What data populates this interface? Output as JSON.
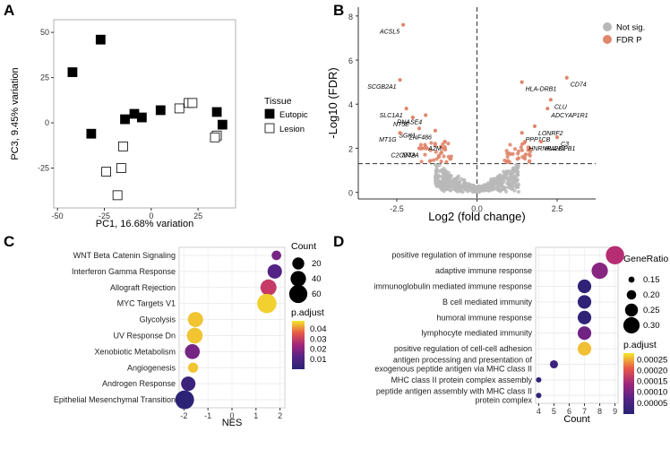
{
  "panels": {
    "a": {
      "label": "A"
    },
    "b": {
      "label": "B"
    },
    "c": {
      "label": "C"
    },
    "d": {
      "label": "D"
    }
  },
  "chart_data": [
    {
      "id": "A",
      "type": "scatter",
      "xlabel": "PC1, 16.68% variation",
      "ylabel": "PC3, 9.45% variation",
      "xlim": [
        -52,
        45
      ],
      "ylim": [
        -47,
        57
      ],
      "xticks": [
        -50,
        -25,
        0,
        25
      ],
      "yticks": [
        -25,
        0,
        25,
        50
      ],
      "legend_title": "Tissue",
      "series": [
        {
          "name": "Eutopic",
          "points": [
            [
              -42,
              28
            ],
            [
              -27,
              46
            ],
            [
              -32,
              -6
            ],
            [
              -14,
              2
            ],
            [
              -9,
              5
            ],
            [
              -5,
              3
            ],
            [
              5,
              7
            ],
            [
              35,
              6
            ],
            [
              38,
              -1
            ]
          ]
        },
        {
          "name": "Lesion",
          "points": [
            [
              -24,
              -27
            ],
            [
              -18,
              -40
            ],
            [
              -16,
              -25
            ],
            [
              -15,
              -13
            ],
            [
              15,
              8
            ],
            [
              20,
              11
            ],
            [
              22,
              11
            ],
            [
              35,
              -7
            ],
            [
              34,
              -8
            ]
          ]
        }
      ]
    },
    {
      "id": "B",
      "type": "scatter",
      "xlabel": "Log2 (fold change)",
      "ylabel": "-Log10 (FDR)",
      "xlim": [
        -3.7,
        3.7
      ],
      "ylim": [
        -0.3,
        8.4
      ],
      "xticks": [
        -2.5,
        0.0,
        2.5
      ],
      "xtick_labels": [
        "-2.5",
        "0.0",
        "2.5"
      ],
      "yticks": [
        0,
        2,
        4,
        6,
        8
      ],
      "threshold_y": 1.3,
      "legend": [
        "Not sig.",
        "FDR P"
      ],
      "labeled_genes": [
        {
          "gene": "ACSL5",
          "x": -2.3,
          "y": 7.6
        },
        {
          "gene": "SCGB2A1",
          "x": -2.4,
          "y": 5.1
        },
        {
          "gene": "SLC1A1",
          "x": -2.2,
          "y": 3.8
        },
        {
          "gene": "NT5E",
          "x": -2.0,
          "y": 3.4
        },
        {
          "gene": "RNASE4",
          "x": -1.6,
          "y": 3.5
        },
        {
          "gene": "SGK1",
          "x": -1.8,
          "y": 2.9
        },
        {
          "gene": "ZNF486",
          "x": -1.3,
          "y": 2.8
        },
        {
          "gene": "MT1G",
          "x": -2.4,
          "y": 2.7
        },
        {
          "gene": "A2M",
          "x": -1.0,
          "y": 2.3
        },
        {
          "gene": "MT2A",
          "x": -1.7,
          "y": 2.0
        },
        {
          "gene": "C2CD4A",
          "x": -1.8,
          "y": 2.0
        },
        {
          "gene": "CD74",
          "x": 2.8,
          "y": 5.2
        },
        {
          "gene": "HLA-DRB1",
          "x": 1.4,
          "y": 5.0
        },
        {
          "gene": "CLU",
          "x": 2.3,
          "y": 4.2
        },
        {
          "gene": "ADCYAP1R1",
          "x": 2.2,
          "y": 3.8
        },
        {
          "gene": "LONRF2",
          "x": 1.8,
          "y": 3.0
        },
        {
          "gene": "PPP1CB",
          "x": 1.4,
          "y": 2.7
        },
        {
          "gene": "C3",
          "x": 2.5,
          "y": 2.5
        },
        {
          "gene": "HNRNPA2B1",
          "x": 1.5,
          "y": 2.3
        },
        {
          "gene": "HLA-DPB1",
          "x": 2.0,
          "y": 2.3
        }
      ]
    },
    {
      "id": "C",
      "type": "scatter",
      "xlabel": "NES",
      "xlim": [
        -2.2,
        2.2
      ],
      "xticks": [
        -2,
        -1,
        0,
        1,
        2
      ],
      "categories": [
        "WNT Beta Catenin Signaling",
        "Interferon Gamma Response",
        "Allograft Rejection",
        "MYC Targets V1",
        "Glycolysis",
        "UV Response Dn",
        "Xenobiotic Metabolism",
        "Angiogenesis",
        "Androgen Response",
        "Epithelial Mesenchymal Transition"
      ],
      "nes": [
        1.85,
        1.78,
        1.52,
        1.45,
        -1.52,
        -1.55,
        -1.65,
        -1.62,
        -1.82,
        -1.97
      ],
      "count": [
        10,
        33,
        44,
        70,
        38,
        42,
        36,
        12,
        33,
        65
      ],
      "padj": [
        0.018,
        0.012,
        0.03,
        0.046,
        0.045,
        0.045,
        0.018,
        0.045,
        0.005,
        0.001
      ],
      "size_legend_title": "Count",
      "size_legend": [
        20,
        40,
        60
      ],
      "color_legend_title": "p.adjust",
      "color_legend": [
        0.04,
        0.03,
        0.02,
        0.01
      ],
      "color_range": [
        0.0,
        0.048
      ]
    },
    {
      "id": "D",
      "type": "scatter",
      "xlabel": "Count",
      "xlim": [
        3.8,
        9.2
      ],
      "xticks": [
        4,
        5,
        6,
        7,
        8,
        9
      ],
      "categories": [
        [
          "positive regulation of immune response"
        ],
        [
          "adaptive immune response"
        ],
        [
          "immunoglobulin mediated immune response"
        ],
        [
          "B cell mediated immunity"
        ],
        [
          "humoral immune response"
        ],
        [
          "lymphocyte mediated immunity"
        ],
        [
          "positive regulation of cell-cell adhesion"
        ],
        [
          "antigen processing and presentation of",
          "exogenous peptide antigen via MHC class II"
        ],
        [
          "MHC class II protein complex assembly"
        ],
        [
          "peptide antigen assembly with MHC class II",
          "protein complex"
        ]
      ],
      "count": [
        9,
        8,
        7,
        7,
        7,
        7,
        7,
        5,
        4,
        4
      ],
      "gene_ratio": [
        0.33,
        0.3,
        0.26,
        0.26,
        0.26,
        0.26,
        0.26,
        0.18,
        0.14,
        0.14
      ],
      "padj": [
        0.00016,
        0.00012,
        1e-05,
        1e-05,
        1e-05,
        0.0001,
        0.00026,
        3e-05,
        1e-05,
        1e-05
      ],
      "size_legend_title": "GeneRatio",
      "size_legend": [
        0.15,
        0.2,
        0.25,
        0.3
      ],
      "color_legend_title": "p.adjust",
      "color_legend": [
        0.00025,
        0.0002,
        0.00015,
        0.0001,
        5e-05
      ],
      "color_range": [
        0.0,
        0.00028
      ]
    }
  ]
}
